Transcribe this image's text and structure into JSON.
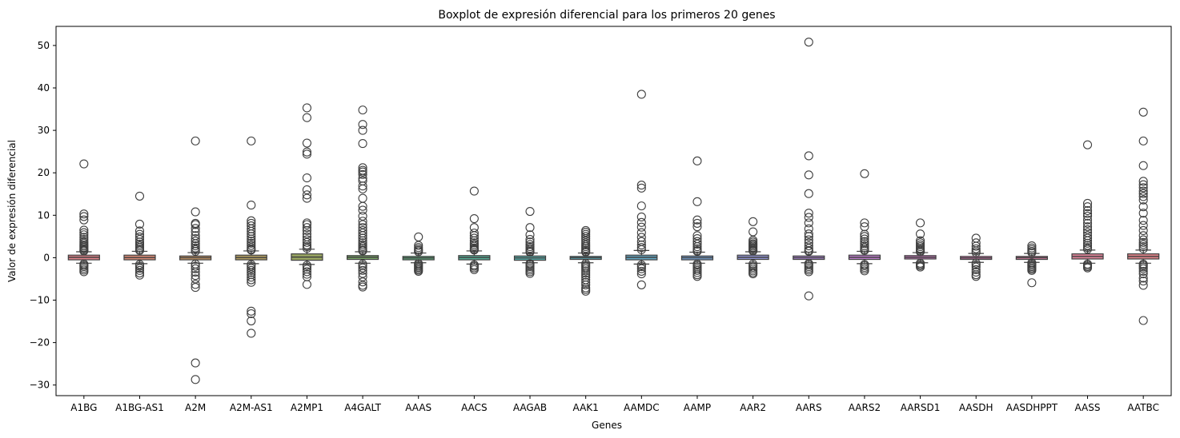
{
  "chart_data": {
    "type": "box",
    "title": "Boxplot de expresión diferencial para los primeros 20 genes",
    "xlabel": "Genes",
    "ylabel": "Valor de expresión diferencial",
    "ylim": [
      -32.5,
      54.5
    ],
    "yticks": [
      -30,
      -20,
      -10,
      0,
      10,
      20,
      30,
      40,
      50
    ],
    "grid": false,
    "legend": "none",
    "categories": [
      "A1BG",
      "A1BG-AS1",
      "A2M",
      "A2M-AS1",
      "A2MP1",
      "A4GALT",
      "AAAS",
      "AACS",
      "AAGAB",
      "AAK1",
      "AAMDC",
      "AAMP",
      "AAR2",
      "AARS",
      "AARS2",
      "AARSD1",
      "AASDH",
      "AASDHPPT",
      "AASS",
      "AATBC"
    ],
    "colors": [
      "#dd8389",
      "#d78a76",
      "#c79766",
      "#b29e62",
      "#99a662",
      "#7eac6a",
      "#61ae7e",
      "#56ad95",
      "#5aaaa6",
      "#5ea8b4",
      "#64a5c0",
      "#77a0cf",
      "#9597d6",
      "#b08ad8",
      "#c281d2",
      "#cf7dc4",
      "#d77eb4",
      "#d981a5",
      "#dc8398",
      "#dd8389"
    ],
    "boxes": [
      {
        "q1": -0.5,
        "median": 0.1,
        "q3": 0.6,
        "whislo": -1.3,
        "whishi": 1.4,
        "fliers": [
          22.1,
          10.3,
          9.7,
          8.9,
          6.5,
          5.9,
          5.4,
          4.8,
          4.3,
          3.8,
          3.4,
          3.0,
          2.7,
          2.4,
          2.1,
          1.8,
          1.6,
          -1.5,
          -1.8,
          -2.1,
          -2.5,
          -2.9,
          -3.3
        ]
      },
      {
        "q1": -0.5,
        "median": 0.05,
        "q3": 0.6,
        "whislo": -1.4,
        "whishi": 1.5,
        "fliers": [
          14.5,
          7.9,
          6.3,
          5.5,
          4.9,
          4.3,
          3.7,
          3.2,
          2.8,
          2.4,
          2.0,
          1.7,
          -1.6,
          -2.0,
          -2.5,
          -3.0,
          -3.6,
          -4.1
        ]
      },
      {
        "q1": -0.5,
        "median": 0.0,
        "q3": 0.4,
        "whislo": -1.3,
        "whishi": 1.2,
        "fliers": [
          27.5,
          10.8,
          8.1,
          7.8,
          6.9,
          6.1,
          5.2,
          4.5,
          3.9,
          3.3,
          2.8,
          2.3,
          1.9,
          1.5,
          -1.5,
          -2.0,
          -2.6,
          -3.4,
          -4.2,
          -5.0,
          -6.3,
          -7.0,
          -24.8,
          -28.7
        ]
      },
      {
        "q1": -0.5,
        "median": 0.05,
        "q3": 0.6,
        "whislo": -1.4,
        "whishi": 1.6,
        "fliers": [
          27.5,
          12.4,
          8.7,
          8.1,
          7.5,
          6.8,
          6.2,
          5.6,
          5.0,
          4.4,
          3.9,
          3.4,
          2.9,
          2.4,
          2.0,
          1.8,
          -1.6,
          -2.0,
          -2.5,
          -3.0,
          -3.5,
          -4.0,
          -4.6,
          -5.2,
          -5.8,
          -12.6,
          -13.2,
          -14.9,
          -17.8
        ]
      },
      {
        "q1": -0.6,
        "median": 0.15,
        "q3": 0.9,
        "whislo": -1.6,
        "whishi": 2.0,
        "fliers": [
          35.3,
          33.0,
          27.0,
          24.9,
          24.4,
          18.8,
          16.0,
          14.8,
          14.0,
          8.2,
          7.8,
          7.1,
          6.4,
          5.6,
          4.9,
          4.2,
          3.6,
          3.0,
          2.6,
          2.2,
          -1.8,
          -2.2,
          -2.7,
          -3.3,
          -3.9,
          -4.5,
          -6.3
        ]
      },
      {
        "q1": -0.4,
        "median": 0.1,
        "q3": 0.5,
        "whislo": -1.3,
        "whishi": 1.4,
        "fliers": [
          34.8,
          31.4,
          30.0,
          26.9,
          21.2,
          20.6,
          20.2,
          19.6,
          18.7,
          18.1,
          16.9,
          16.2,
          14.0,
          12.1,
          11.2,
          9.8,
          8.6,
          7.8,
          7.1,
          6.4,
          5.8,
          5.2,
          4.6,
          4.0,
          3.5,
          3.0,
          2.6,
          2.2,
          1.8,
          1.6,
          -1.5,
          -1.9,
          -2.4,
          -3.0,
          -3.7,
          -4.5,
          -5.7,
          -6.5,
          -6.9
        ]
      },
      {
        "q1": -0.5,
        "median": -0.05,
        "q3": 0.3,
        "whislo": -1.2,
        "whishi": 1.1,
        "fliers": [
          4.9,
          2.9,
          2.4,
          2.0,
          1.7,
          1.4,
          -1.4,
          -1.7,
          -2.0,
          -2.3,
          -2.6,
          -2.9,
          -3.2
        ]
      },
      {
        "q1": -0.5,
        "median": 0.05,
        "q3": 0.5,
        "whislo": -1.5,
        "whishi": 1.6,
        "fliers": [
          15.7,
          9.2,
          7.1,
          5.8,
          5.2,
          4.6,
          4.0,
          3.5,
          3.1,
          2.7,
          2.3,
          2.0,
          1.8,
          -1.7,
          -2.0,
          -2.4,
          -2.8
        ]
      },
      {
        "q1": -0.6,
        "median": -0.05,
        "q3": 0.4,
        "whislo": -1.2,
        "whishi": 1.1,
        "fliers": [
          10.9,
          7.1,
          5.4,
          4.3,
          3.7,
          3.1,
          2.6,
          2.2,
          1.8,
          1.5,
          1.3,
          -1.4,
          -1.7,
          -2.1,
          -2.5,
          -2.9,
          -3.3,
          -3.7
        ]
      },
      {
        "q1": -0.4,
        "median": 0.0,
        "q3": 0.3,
        "whislo": -1.2,
        "whishi": 1.1,
        "fliers": [
          6.4,
          6.0,
          5.5,
          5.0,
          4.5,
          4.0,
          3.5,
          3.0,
          2.6,
          2.2,
          1.8,
          1.5,
          1.3,
          -1.4,
          -1.8,
          -2.2,
          -2.6,
          -3.1,
          -3.6,
          -4.1,
          -4.6,
          -5.2,
          -5.8,
          -6.4,
          -7.1,
          -7.5,
          -7.9
        ]
      },
      {
        "q1": -0.5,
        "median": 0.1,
        "q3": 0.6,
        "whislo": -1.5,
        "whishi": 1.7,
        "fliers": [
          38.5,
          17.1,
          16.4,
          12.2,
          9.6,
          8.3,
          7.2,
          5.9,
          4.8,
          3.8,
          3.0,
          2.4,
          1.9,
          -1.7,
          -2.1,
          -2.6,
          -3.2,
          -3.8,
          -6.4
        ]
      },
      {
        "q1": -0.5,
        "median": 0.0,
        "q3": 0.4,
        "whislo": -1.3,
        "whishi": 1.3,
        "fliers": [
          22.8,
          13.2,
          8.9,
          8.1,
          7.3,
          5.2,
          4.5,
          3.8,
          3.2,
          2.6,
          2.1,
          1.7,
          1.5,
          -1.5,
          -1.8,
          -2.2,
          -2.6,
          -3.0,
          -3.5,
          -4.0,
          -4.4
        ]
      },
      {
        "q1": -0.4,
        "median": 0.1,
        "q3": 0.6,
        "whislo": -1.3,
        "whishi": 1.4,
        "fliers": [
          8.5,
          6.1,
          4.1,
          3.7,
          3.3,
          3.0,
          2.7,
          2.4,
          2.1,
          1.8,
          1.6,
          -1.5,
          -1.9,
          -2.3,
          -2.7,
          -3.1,
          -3.5,
          -3.8
        ]
      },
      {
        "q1": -0.4,
        "median": 0.0,
        "q3": 0.4,
        "whislo": -1.2,
        "whishi": 1.3,
        "fliers": [
          50.8,
          24.0,
          19.5,
          15.1,
          10.5,
          9.5,
          8.2,
          6.8,
          5.6,
          5.0,
          4.2,
          3.5,
          2.8,
          2.2,
          1.7,
          1.5,
          -1.4,
          -1.7,
          -2.1,
          -2.5,
          -2.9,
          -3.3,
          -9.0
        ]
      },
      {
        "q1": -0.4,
        "median": 0.1,
        "q3": 0.6,
        "whislo": -1.4,
        "whishi": 1.5,
        "fliers": [
          19.8,
          8.2,
          7.3,
          5.5,
          5.0,
          4.4,
          3.8,
          3.3,
          2.8,
          2.4,
          2.0,
          1.7,
          -1.6,
          -1.9,
          -2.3,
          -2.7,
          -3.1
        ]
      },
      {
        "q1": -0.3,
        "median": 0.1,
        "q3": 0.5,
        "whislo": -1.2,
        "whishi": 1.2,
        "fliers": [
          8.2,
          5.6,
          4.0,
          3.5,
          3.0,
          2.6,
          2.2,
          1.9,
          1.6,
          1.4,
          -1.3,
          -1.6,
          -1.9,
          -2.2
        ]
      },
      {
        "q1": -0.4,
        "median": -0.05,
        "q3": 0.3,
        "whislo": -1.1,
        "whishi": 1.0,
        "fliers": [
          4.6,
          3.5,
          2.7,
          2.1,
          1.6,
          1.2,
          -1.3,
          -1.7,
          -2.2,
          -2.8,
          -3.4,
          -4.0,
          -4.4
        ]
      },
      {
        "q1": -0.4,
        "median": 0.0,
        "q3": 0.3,
        "whislo": -1.1,
        "whishi": 1.0,
        "fliers": [
          2.8,
          2.3,
          1.9,
          1.5,
          1.2,
          -1.2,
          -1.5,
          -1.8,
          -2.1,
          -2.4,
          -2.7,
          -3.0,
          -5.9
        ]
      },
      {
        "q1": -0.3,
        "median": 0.3,
        "q3": 0.9,
        "whislo": -1.3,
        "whishi": 1.8,
        "fliers": [
          26.6,
          12.8,
          12.0,
          11.1,
          10.4,
          9.8,
          8.9,
          8.1,
          7.3,
          6.6,
          5.9,
          5.2,
          4.6,
          4.0,
          3.4,
          2.9,
          2.4,
          2.0,
          -1.5,
          -1.8,
          -2.1,
          -2.4
        ]
      },
      {
        "q1": -0.3,
        "median": 0.3,
        "q3": 0.9,
        "whislo": -1.3,
        "whishi": 1.8,
        "fliers": [
          34.3,
          27.5,
          21.7,
          18.0,
          17.2,
          16.5,
          15.7,
          15.1,
          14.4,
          13.6,
          12.0,
          10.5,
          8.8,
          7.6,
          6.4,
          5.2,
          4.2,
          3.6,
          3.1,
          2.6,
          2.1,
          -1.5,
          -1.8,
          -2.2,
          -2.6,
          -3.2,
          -3.8,
          -4.8,
          -5.5,
          -6.5,
          -14.8
        ]
      }
    ]
  }
}
